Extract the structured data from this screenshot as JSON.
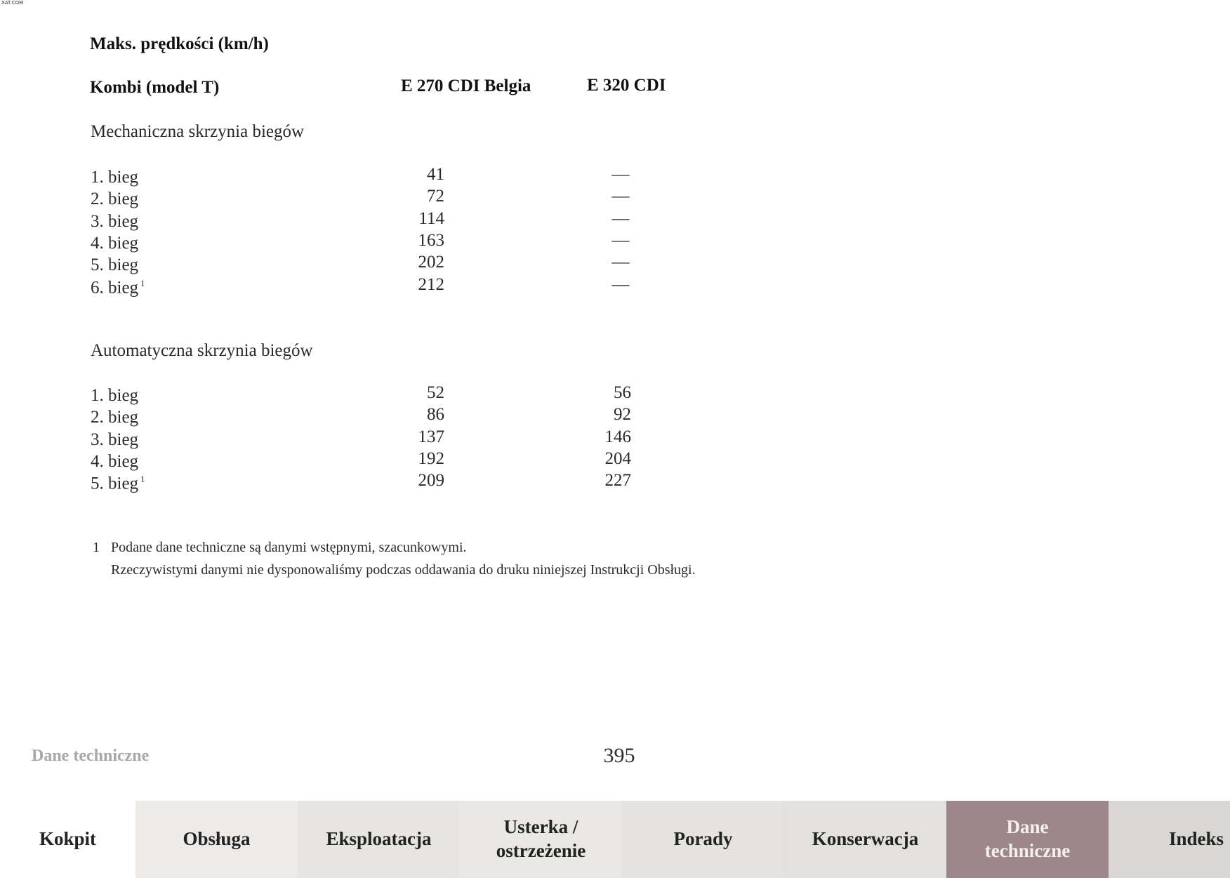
{
  "watermark": "XAT.COM",
  "title": "Maks. prędkości (km/h)",
  "table": {
    "header": [
      "Kombi (model T)",
      "E 270 CDI Belgia",
      "E 320 CDI"
    ],
    "sections": [
      {
        "title": "Mechaniczna skrzynia biegów",
        "rows": [
          {
            "label": "1. bieg",
            "values": [
              41,
              "—"
            ]
          },
          {
            "label": "2. bieg",
            "values": [
              72,
              "—"
            ]
          },
          {
            "label": "3. bieg",
            "values": [
              114,
              "—"
            ]
          },
          {
            "label": "4. bieg",
            "values": [
              163,
              "—"
            ]
          },
          {
            "label": "5. bieg",
            "values": [
              202,
              "—"
            ]
          },
          {
            "label": "6. bieg",
            "note": 1,
            "values": [
              212,
              "—"
            ]
          }
        ]
      },
      {
        "title": "Automatyczna skrzynia biegów",
        "rows": [
          {
            "label": "1. bieg",
            "values": [
              52,
              56
            ]
          },
          {
            "label": "2. bieg",
            "values": [
              86,
              92
            ]
          },
          {
            "label": "3. bieg",
            "values": [
              137,
              146
            ]
          },
          {
            "label": "4. bieg",
            "values": [
              192,
              204
            ]
          },
          {
            "label": "5. bieg",
            "note": 1,
            "values": [
              209,
              227
            ]
          }
        ]
      }
    ]
  },
  "footnote": {
    "number": 1,
    "lines": [
      "Podane dane techniczne są danymi wstępnymi, szacunkowymi.",
      "Rzeczywistymi danymi nie dysponowaliśmy podczas oddawania do druku niniejszej Instrukcji Obsługi."
    ]
  },
  "footer": {
    "section": "Dane techniczne",
    "page": 395
  },
  "tabs": [
    {
      "lines": [
        "Kokpit"
      ]
    },
    {
      "lines": [
        "Obsługa"
      ]
    },
    {
      "lines": [
        "Eksploatacja"
      ]
    },
    {
      "lines": [
        "Usterka /",
        "ostrzeżenie"
      ]
    },
    {
      "lines": [
        "Porady"
      ]
    },
    {
      "lines": [
        "Konserwacja"
      ]
    },
    {
      "lines": [
        "Dane",
        "techniczne"
      ],
      "active": true
    },
    {
      "lines": [
        "Indeks"
      ]
    }
  ]
}
